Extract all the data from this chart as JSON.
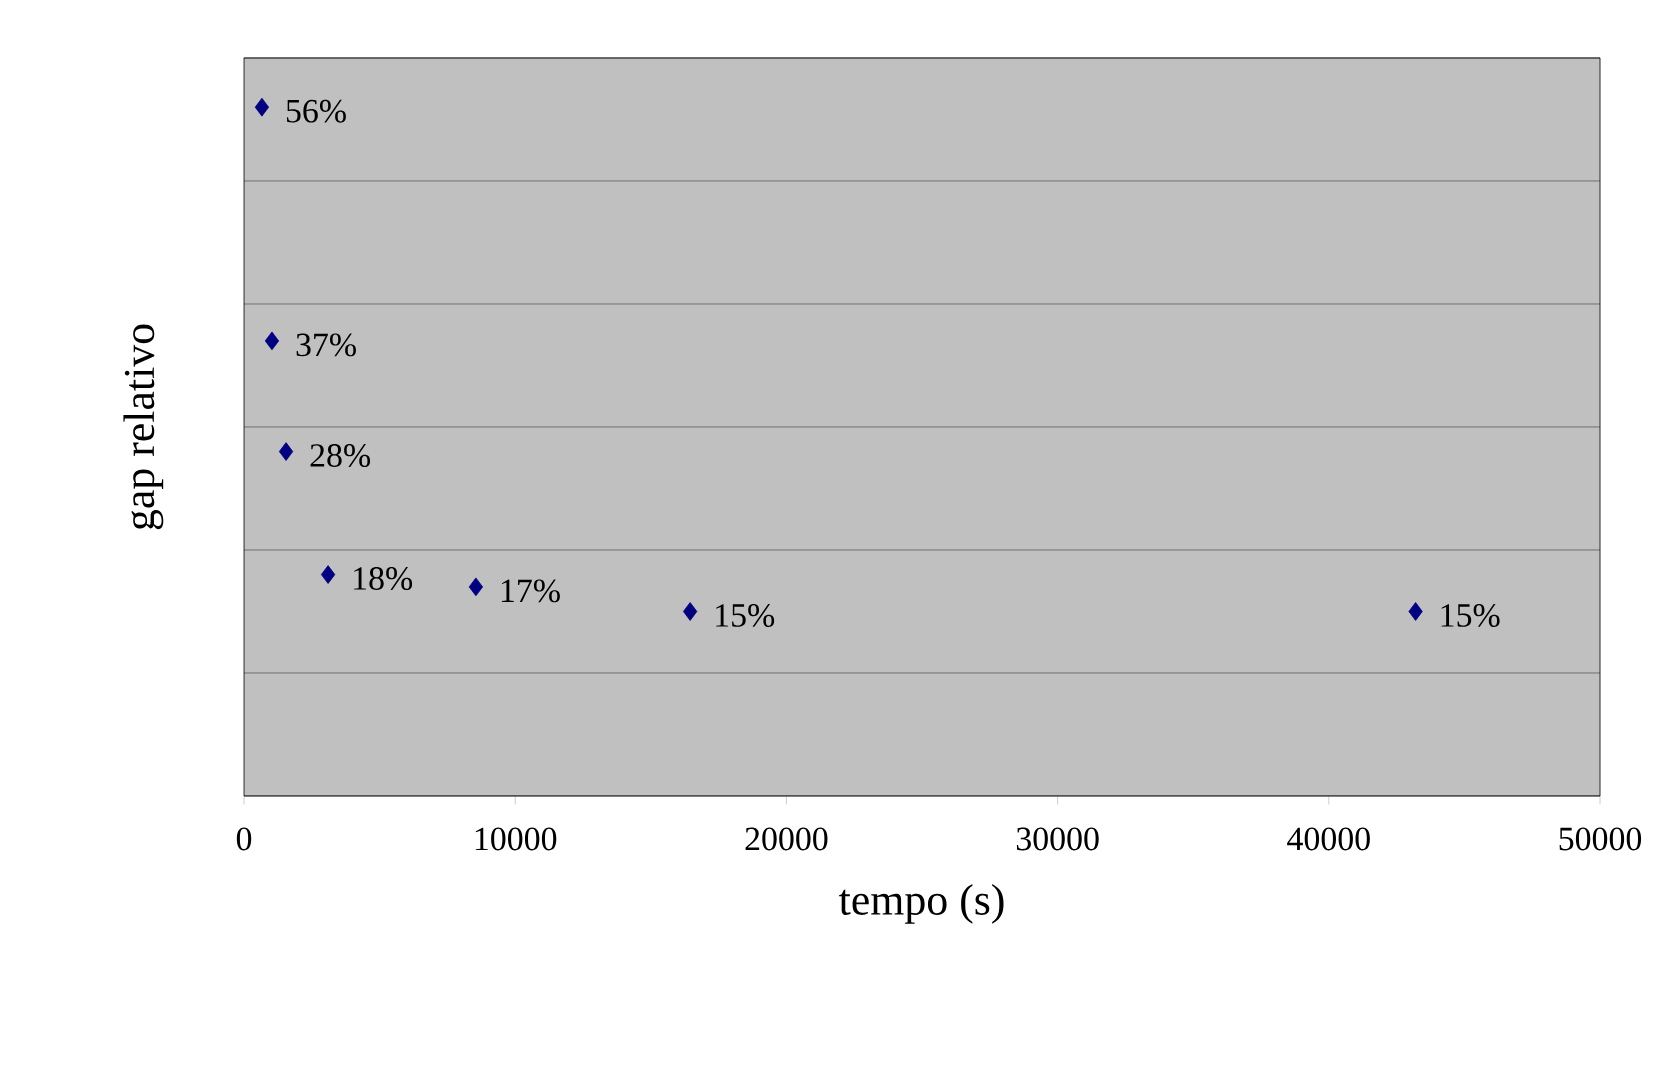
{
  "chart_data": {
    "type": "scatter",
    "xlabel": "tempo (s)",
    "ylabel": "gap relativo",
    "x": [
      660,
      1030,
      1550,
      3100,
      8550,
      16450,
      43200
    ],
    "series": [
      {
        "color": "#000080",
        "values": [
          56,
          37,
          28,
          18,
          17,
          15,
          15
        ],
        "value_labels": [
          "56%",
          "37%",
          "28%",
          "18%",
          "17%",
          "15%",
          "15%"
        ]
      }
    ],
    "xlim": [
      0,
      50000
    ],
    "xticks": [
      0,
      10000,
      20000,
      30000,
      40000,
      50000
    ],
    "ylim": [
      0,
      60
    ],
    "yticks": [
      {
        "value": 0,
        "label": null
      },
      {
        "value": 10,
        "label": null
      },
      {
        "value": 20,
        "label": null
      },
      {
        "value": 30,
        "label": null
      },
      {
        "value": 40,
        "label": null
      },
      {
        "value": 50,
        "label": null
      },
      {
        "value": 60,
        "label": null
      }
    ],
    "tick_labels": "x",
    "grid": "y",
    "marker": "diamond"
  }
}
